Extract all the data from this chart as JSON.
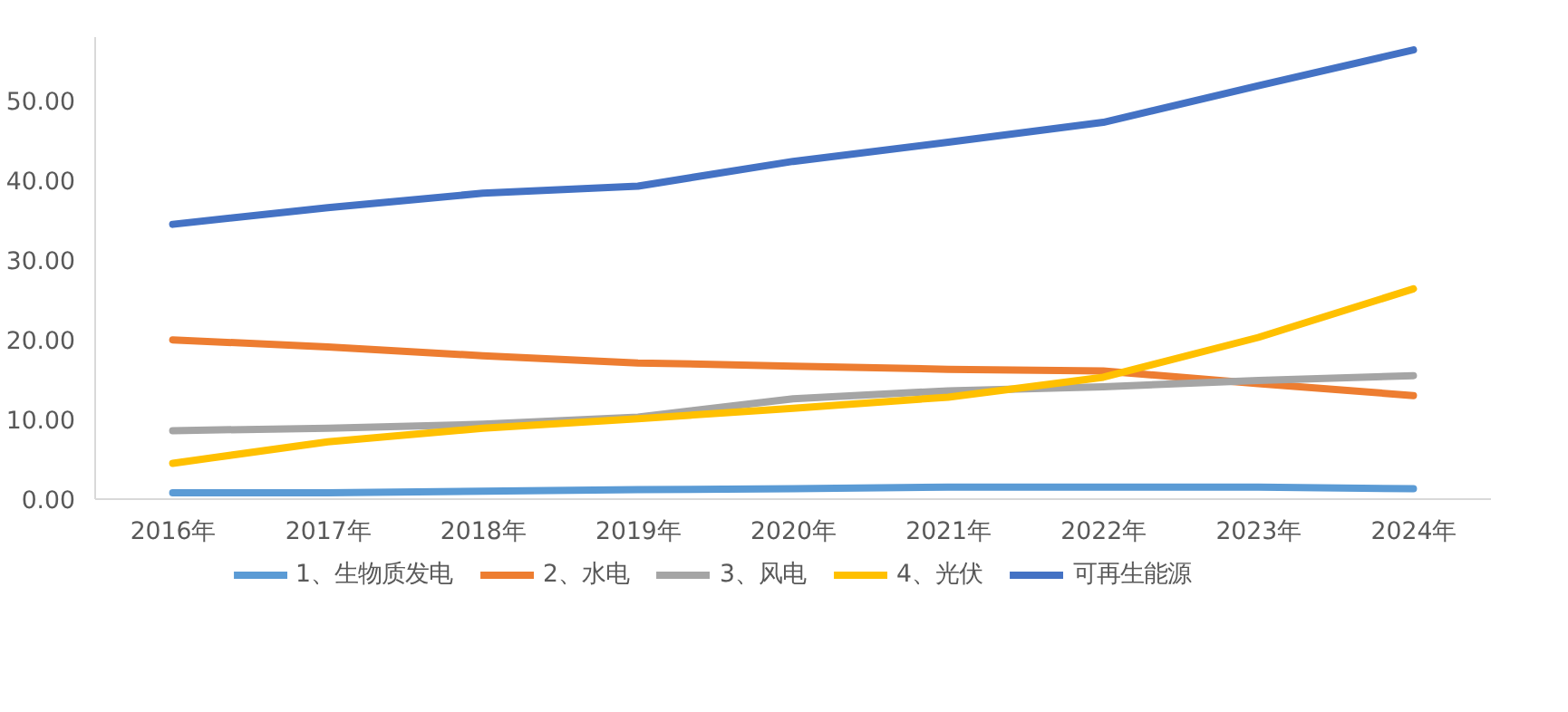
{
  "chart_data": {
    "type": "line",
    "categories": [
      "2016年",
      "2017年",
      "2018年",
      "2019年",
      "2020年",
      "2021年",
      "2022年",
      "2023年",
      "2024年"
    ],
    "series": [
      {
        "name": "1、生物质发电",
        "color": "#5b9bd5",
        "values": [
          0.8,
          0.8,
          1.0,
          1.2,
          1.3,
          1.5,
          1.5,
          1.5,
          1.3
        ]
      },
      {
        "name": "2、水电",
        "color": "#ed7d31",
        "values": [
          20.0,
          19.1,
          18.0,
          17.1,
          16.7,
          16.3,
          16.1,
          14.5,
          13.0
        ]
      },
      {
        "name": "3、风电",
        "color": "#a5a5a5",
        "values": [
          8.6,
          8.9,
          9.4,
          10.3,
          12.6,
          13.6,
          14.1,
          14.9,
          15.5
        ]
      },
      {
        "name": "4、光伏",
        "color": "#ffc000",
        "values": [
          4.5,
          7.2,
          8.9,
          10.1,
          11.4,
          12.8,
          15.3,
          20.3,
          26.4
        ]
      },
      {
        "name": "可再生能源",
        "color": "#4472c4",
        "values": [
          34.5,
          36.6,
          38.4,
          39.3,
          42.4,
          44.8,
          47.3,
          51.9,
          56.4
        ]
      }
    ],
    "ylim": [
      0,
      58
    ],
    "yticks": [
      {
        "value": 0,
        "label": "0.00"
      },
      {
        "value": 10,
        "label": "10.00"
      },
      {
        "value": 20,
        "label": "20.00"
      },
      {
        "value": 30,
        "label": "30.00"
      },
      {
        "value": 40,
        "label": "40.00"
      },
      {
        "value": 50,
        "label": "50.00"
      }
    ],
    "grid": false,
    "legend": "bottom",
    "marker": "none",
    "line_style": "solid"
  }
}
